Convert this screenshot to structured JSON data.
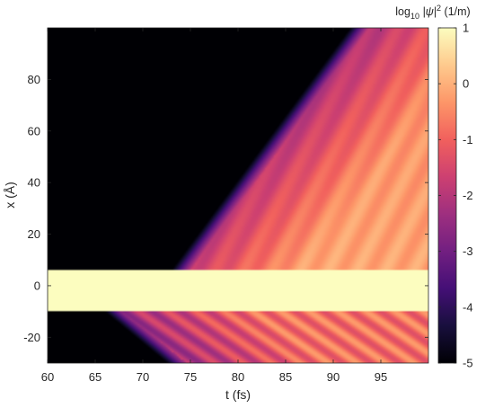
{
  "chart_data": {
    "type": "heatmap",
    "title": "",
    "xlabel": "t (fs)",
    "ylabel": "x (Å)",
    "xlim": [
      60,
      100
    ],
    "ylim": [
      -30,
      100
    ],
    "xticks": [
      60,
      65,
      70,
      75,
      80,
      85,
      90,
      95
    ],
    "yticks": [
      -20,
      0,
      20,
      40,
      60,
      80
    ],
    "colorbar": {
      "label_prefix": "log",
      "label_sub": "10",
      "label_body": " |ψ|",
      "label_sup": "2",
      "label_unit": " (1/m)",
      "range": [
        -5,
        1
      ],
      "ticks": [
        1,
        0,
        -1,
        -2,
        -3,
        -4,
        -5
      ],
      "colormap": "magma",
      "stops": [
        "#000004",
        "#180f3d",
        "#440f76",
        "#721f81",
        "#9e2f7f",
        "#cd4071",
        "#f1605d",
        "#fd9668",
        "#feca8d",
        "#fcfdbf"
      ]
    },
    "features": {
      "bound_state_band_x": [
        -10,
        6
      ],
      "bound_state_log_value": 1,
      "wavefront_onset_t": 70,
      "emission_pulse_times_t": [
        71.5,
        74.5,
        77.5,
        80.5,
        83.5,
        86.5,
        89.5,
        92.5,
        95.5,
        98.5
      ]
    }
  }
}
